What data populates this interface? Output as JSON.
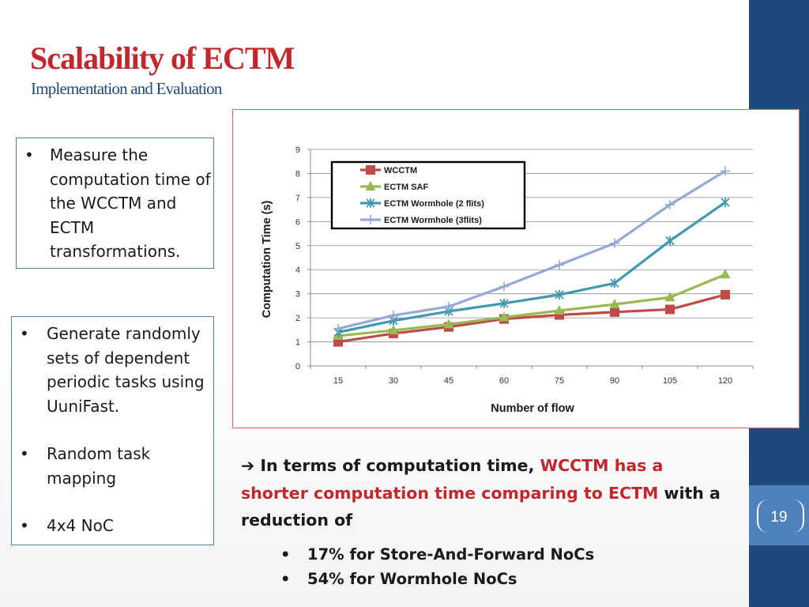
{
  "slide": {
    "title": "Scalability of  ECTM",
    "subtitle": "Implementation and Evaluation",
    "page_number": "19"
  },
  "left_box_1": {
    "items": [
      "Measure the computation time of the WCCTM and ECTM transformations."
    ]
  },
  "left_box_2": {
    "items": [
      "Generate randomly sets of dependent periodic tasks using UuniFast.",
      "Random task mapping",
      "4x4 NoC"
    ]
  },
  "conclusion": {
    "arrow": "➔",
    "part1": "In terms of computation time, ",
    "part2": "WCCTM has a shorter computation time comparing to ECTM",
    "part3": " with a reduction of",
    "bullets": [
      "17% for Store-And-Forward NoCs",
      "54% for Wormhole NoCs"
    ]
  },
  "chart_data": {
    "type": "line",
    "xlabel": "Number of flow",
    "ylabel": "Computation Time (s)",
    "categories": [
      "15",
      "30",
      "45",
      "60",
      "75",
      "90",
      "105",
      "120"
    ],
    "ylim": [
      0,
      9
    ],
    "yticks": [
      0,
      1,
      2,
      3,
      4,
      5,
      6,
      7,
      8,
      9
    ],
    "grid": true,
    "legend_position": "top-left",
    "series": [
      {
        "name": "WCCTM",
        "color": "#be4b48",
        "marker": "square",
        "values": [
          1.0,
          1.35,
          1.62,
          1.95,
          2.12,
          2.24,
          2.35,
          2.96
        ]
      },
      {
        "name": "ECTM SAF",
        "color": "#98b954",
        "marker": "triangle",
        "values": [
          1.25,
          1.48,
          1.73,
          2.02,
          2.3,
          2.56,
          2.85,
          3.8
        ]
      },
      {
        "name": "ECTM Wormhole (2 flits)",
        "color": "#4198af",
        "marker": "star",
        "values": [
          1.4,
          1.88,
          2.27,
          2.6,
          2.96,
          3.44,
          5.2,
          6.8
        ]
      },
      {
        "name": "ECTM Wormhole (3flits)",
        "color": "#95a9d4",
        "marker": "plus",
        "values": [
          1.55,
          2.1,
          2.47,
          3.3,
          4.2,
          5.1,
          6.7,
          8.1
        ]
      }
    ]
  }
}
